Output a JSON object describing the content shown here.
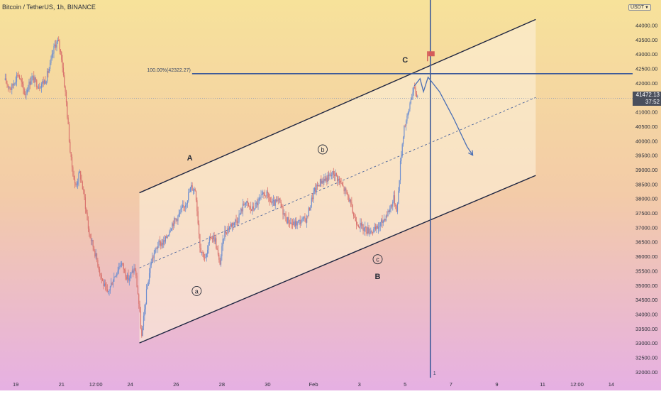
{
  "header": {
    "symbol_title": "Bitcoin / TetherUS, 1h, BINANCE",
    "currency": "USDT"
  },
  "price_tag": {
    "price": "41472.13",
    "countdown": "37:52"
  },
  "colors": {
    "background_top": "#f7e29a",
    "background_mid": "#f3cba8",
    "background_bottom": "#e6b0e3",
    "candle_up": "#6f8fd0",
    "candle_down": "#d9736e",
    "channel_line": "#1d2440",
    "channel_fill": "#fbefd9",
    "fib_line": "#3d5a99",
    "vertical_line": "#3d5a99",
    "projection": "#4a6fb5",
    "flag": "#d45a5a"
  },
  "chart_data": {
    "type": "candlestick",
    "y_axis": {
      "ylim": [
        31800,
        44750
      ],
      "ticks": [
        32000,
        32500,
        33000,
        33500,
        34000,
        34500,
        35000,
        35500,
        36000,
        36500,
        37000,
        37500,
        38000,
        38500,
        39000,
        39500,
        40000,
        40500,
        41000,
        41500,
        42000,
        42500,
        43000,
        43500,
        44000
      ],
      "tick_labels": [
        "32000.00",
        "32500.00",
        "33000.00",
        "33500.00",
        "34000.00",
        "34500.00",
        "35000.00",
        "35500.00",
        "36000.00",
        "36500.00",
        "37000.00",
        "37500.00",
        "38000.00",
        "38500.00",
        "39000.00",
        "39500.00",
        "40000.00",
        "40500.00",
        "41000.00",
        "41500.00",
        "42000.00",
        "42500.00",
        "43000.00",
        "43500.00",
        "44000.00"
      ]
    },
    "x_axis": {
      "xlim": [
        0,
        26.5
      ],
      "ticks": [
        {
          "day": 0.5,
          "label": "19"
        },
        {
          "day": 2.5,
          "label": "21"
        },
        {
          "day": 4.0,
          "label": "12:00"
        },
        {
          "day": 5.5,
          "label": "24"
        },
        {
          "day": 7.5,
          "label": "26"
        },
        {
          "day": 9.5,
          "label": "28"
        },
        {
          "day": 11.5,
          "label": "30"
        },
        {
          "day": 13.5,
          "label": "Feb"
        },
        {
          "day": 15.5,
          "label": "3"
        },
        {
          "day": 17.5,
          "label": "5"
        },
        {
          "day": 19.5,
          "label": "7"
        },
        {
          "day": 21.5,
          "label": "9"
        },
        {
          "day": 23.5,
          "label": "11"
        },
        {
          "day": 25.0,
          "label": "12:00"
        },
        {
          "day": 26.5,
          "label": "14"
        }
      ]
    },
    "price_keypoints": [
      [
        0.0,
        42100
      ],
      [
        0.3,
        41800
      ],
      [
        0.6,
        42350
      ],
      [
        0.9,
        41600
      ],
      [
        1.2,
        42200
      ],
      [
        1.5,
        41900
      ],
      [
        1.8,
        42100
      ],
      [
        2.0,
        42600
      ],
      [
        2.2,
        43300
      ],
      [
        2.35,
        43450
      ],
      [
        2.5,
        42900
      ],
      [
        2.7,
        41400
      ],
      [
        2.9,
        39400
      ],
      [
        3.1,
        38400
      ],
      [
        3.3,
        38900
      ],
      [
        3.5,
        38000
      ],
      [
        3.7,
        36800
      ],
      [
        3.9,
        36300
      ],
      [
        4.1,
        35700
      ],
      [
        4.3,
        35100
      ],
      [
        4.5,
        34700
      ],
      [
        4.8,
        35300
      ],
      [
        5.1,
        35800
      ],
      [
        5.4,
        35200
      ],
      [
        5.7,
        35600
      ],
      [
        5.85,
        34600
      ],
      [
        6.0,
        33200
      ],
      [
        6.2,
        34700
      ],
      [
        6.4,
        35800
      ],
      [
        6.7,
        36400
      ],
      [
        7.0,
        36500
      ],
      [
        7.3,
        37100
      ],
      [
        7.6,
        37400
      ],
      [
        7.9,
        37800
      ],
      [
        8.15,
        38400
      ],
      [
        8.35,
        38300
      ],
      [
        8.55,
        36300
      ],
      [
        8.8,
        35900
      ],
      [
        9.0,
        36700
      ],
      [
        9.2,
        36600
      ],
      [
        9.4,
        35700
      ],
      [
        9.6,
        36800
      ],
      [
        9.9,
        37100
      ],
      [
        10.2,
        37300
      ],
      [
        10.5,
        37900
      ],
      [
        10.8,
        37600
      ],
      [
        11.1,
        37900
      ],
      [
        11.4,
        38200
      ],
      [
        11.7,
        37800
      ],
      [
        12.0,
        37900
      ],
      [
        12.3,
        37300
      ],
      [
        12.6,
        37100
      ],
      [
        12.9,
        37200
      ],
      [
        13.2,
        37300
      ],
      [
        13.5,
        38200
      ],
      [
        13.8,
        38600
      ],
      [
        14.1,
        38700
      ],
      [
        14.4,
        38900
      ],
      [
        14.7,
        38500
      ],
      [
        15.0,
        38100
      ],
      [
        15.3,
        37300
      ],
      [
        15.6,
        37000
      ],
      [
        15.9,
        36900
      ],
      [
        16.2,
        36900
      ],
      [
        16.5,
        37200
      ],
      [
        16.8,
        37600
      ],
      [
        17.0,
        38000
      ],
      [
        17.15,
        37600
      ],
      [
        17.3,
        39300
      ],
      [
        17.45,
        40500
      ],
      [
        17.6,
        40800
      ],
      [
        17.75,
        41500
      ],
      [
        17.9,
        41800
      ],
      [
        18.05,
        41500
      ]
    ],
    "channel": {
      "upper": {
        "start": [
          5.9,
          38200
        ],
        "end": [
          23.2,
          44200
        ]
      },
      "lower": {
        "start": [
          5.9,
          33000
        ],
        "end": [
          23.2,
          38800
        ]
      },
      "median": {
        "start": [
          5.9,
          35600
        ],
        "end": [
          23.2,
          41500
        ]
      }
    },
    "fibonacci": {
      "level_label": "100.00%(42322.27)",
      "price": 42322.27,
      "x_start": 8.2
    },
    "vertical_line": {
      "day": 18.6,
      "label": "1"
    },
    "projection_path": [
      [
        17.9,
        41900
      ],
      [
        18.15,
        42150
      ],
      [
        18.3,
        41700
      ],
      [
        18.5,
        42200
      ],
      [
        19.0,
        41700
      ],
      [
        19.6,
        40800
      ],
      [
        20.2,
        39800
      ],
      [
        20.45,
        39500
      ]
    ],
    "wave_labels": [
      {
        "text": "A",
        "day": 8.1,
        "price": 39400,
        "circled": false
      },
      {
        "text": "B",
        "day": 16.3,
        "price": 35300,
        "circled": false
      },
      {
        "text": "C",
        "day": 17.5,
        "price": 42800,
        "circled": false
      },
      {
        "text": "a",
        "day": 8.4,
        "price": 34800,
        "circled": true
      },
      {
        "text": "b",
        "day": 13.9,
        "price": 39700,
        "circled": true
      },
      {
        "text": "c",
        "day": 16.3,
        "price": 35900,
        "circled": true
      }
    ],
    "flag": {
      "day": 18.6,
      "price": 42950
    },
    "current_price": 41472.13
  }
}
